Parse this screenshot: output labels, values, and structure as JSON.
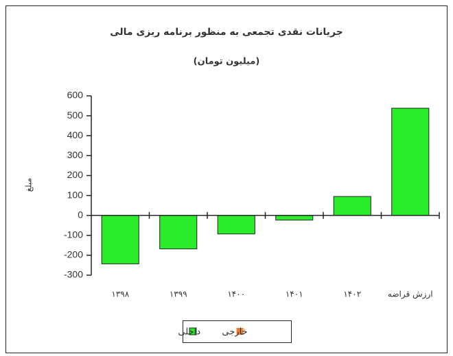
{
  "chart_data": {
    "type": "bar",
    "title": "جریانات نقدی تجمعی به منظور برنامه ریزی مالی",
    "subtitle": "(میلیون تومان)",
    "y_label": "مبلغ",
    "categories": [
      "۱۳۹۸",
      "۱۳۹۹",
      "۱۴۰۰",
      "۱۴۰۱",
      "۱۴۰۲",
      "ارزش قراضه"
    ],
    "series": [
      {
        "name": "داخلی",
        "color": "#2aec2a",
        "values": [
          -243,
          -168,
          -93,
          -23,
          95,
          538
        ]
      },
      {
        "name": "خارجی",
        "color": "#ed7d31",
        "values": [
          null,
          null,
          null,
          null,
          null,
          null
        ]
      }
    ],
    "ylim": [
      -300,
      600
    ],
    "yticks": [
      -300,
      -200,
      -100,
      0,
      100,
      200,
      300,
      400,
      500,
      600
    ],
    "grid": false,
    "legend": "bottom"
  }
}
